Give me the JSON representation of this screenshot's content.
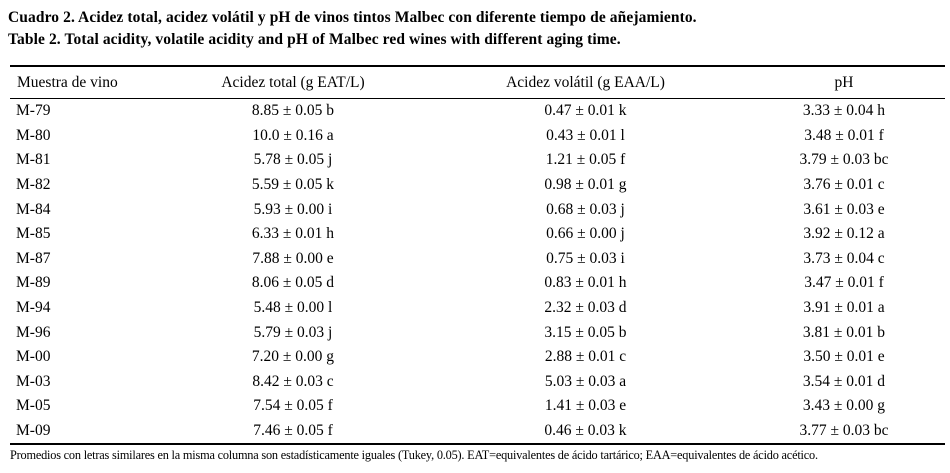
{
  "caption": {
    "spanish": "Cuadro 2. Acidez total, acidez volátil y pH de vinos tintos Malbec con diferente tiempo de añejamiento.",
    "english": "Table 2. Total acidity, volatile acidity and pH of Malbec red wines with different aging time."
  },
  "table": {
    "columns": [
      "Muestra de vino",
      "Acidez total (g EAT/L)",
      "Acidez volátil (g EAA/L)",
      "pH"
    ],
    "rows": [
      [
        "M-79",
        "8.85 ± 0.05 b",
        "0.47 ± 0.01 k",
        "3.33 ± 0.04 h"
      ],
      [
        "M-80",
        "10.0 ± 0.16 a",
        "0.43 ± 0.01 l",
        "3.48 ± 0.01 f"
      ],
      [
        "M-81",
        "5.78 ± 0.05 j",
        "1.21 ± 0.05 f",
        "3.79 ± 0.03 bc"
      ],
      [
        "M-82",
        "5.59 ± 0.05 k",
        "0.98 ± 0.01 g",
        "3.76 ± 0.01 c"
      ],
      [
        "M-84",
        "5.93 ± 0.00 i",
        "0.68 ± 0.03 j",
        "3.61 ± 0.03 e"
      ],
      [
        "M-85",
        "6.33 ± 0.01 h",
        "0.66 ± 0.00 j",
        "3.92 ± 0.12 a"
      ],
      [
        "M-87",
        "7.88 ± 0.00 e",
        "0.75 ± 0.03 i",
        "3.73 ± 0.04 c"
      ],
      [
        "M-89",
        "8.06 ± 0.05 d",
        "0.83 ± 0.01 h",
        "3.47 ± 0.01 f"
      ],
      [
        "M-94",
        "5.48 ± 0.00 l",
        "2.32 ± 0.03 d",
        "3.91 ± 0.01 a"
      ],
      [
        "M-96",
        "5.79 ± 0.03 j",
        "3.15 ± 0.05 b",
        "3.81 ± 0.01 b"
      ],
      [
        "M-00",
        "7.20 ± 0.00 g",
        "2.88 ± 0.01 c",
        "3.50 ± 0.01 e"
      ],
      [
        "M-03",
        "8.42 ± 0.03 c",
        "5.03 ± 0.03 a",
        "3.54 ± 0.01 d"
      ],
      [
        "M-05",
        "7.54 ± 0.05 f",
        "1.41 ± 0.03 e",
        "3.43 ± 0.00 g"
      ],
      [
        "M-09",
        "7.46 ± 0.05 f",
        "0.46 ± 0.03 k",
        "3.77 ± 0.03 bc"
      ]
    ]
  },
  "footnote": "Promedios con letras similares en la misma columna son estadísticamente iguales (Tukey, 0.05). EAT=equivalentes de ácido tartárico; EAA=equivalentes de ácido acético.",
  "colors": {
    "text": "#000000",
    "background": "#ffffff",
    "rule": "#000000"
  }
}
